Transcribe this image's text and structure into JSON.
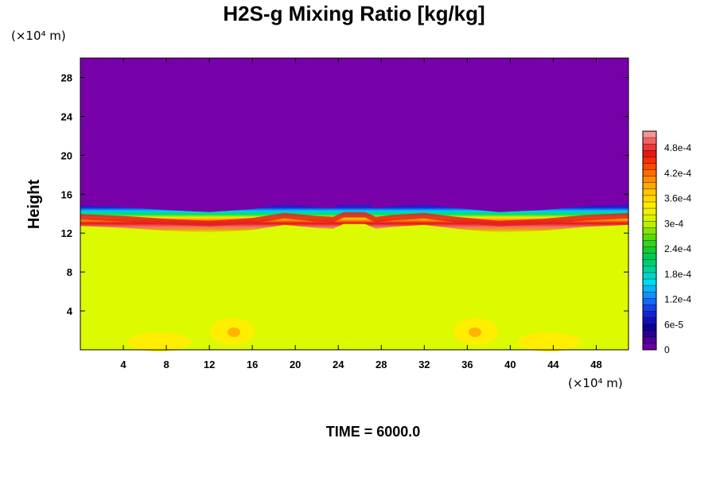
{
  "chart_data": {
    "type": "heatmap",
    "title": "H2S-g Mixing Ratio [kg/kg]",
    "ylabel": "Height",
    "xlabel": "",
    "x_unit": "(×10⁴ m)",
    "y_unit": "(×10⁴ m)",
    "xlim": [
      0,
      51
    ],
    "ylim": [
      0,
      30
    ],
    "x_ticks": [
      4,
      8,
      12,
      16,
      20,
      24,
      28,
      32,
      36,
      40,
      44,
      48
    ],
    "y_ticks": [
      4,
      8,
      12,
      16,
      20,
      24,
      28
    ],
    "colorbar": {
      "range": [
        0,
        0.00052
      ],
      "tick_values": [
        0,
        6e-05,
        0.00012,
        0.00018,
        0.00024,
        0.0003,
        0.00036,
        0.00042,
        0.00048
      ],
      "tick_labels": [
        "0",
        "6e-5",
        "1.2e-4",
        "1.8e-4",
        "2.4e-4",
        "3e-4",
        "3.6e-4",
        "4.2e-4",
        "4.8e-4"
      ]
    },
    "regions": {
      "upper_value": 0,
      "lower_value": 0.00034,
      "interface_height": [
        [
          0,
          14.7
        ],
        [
          4,
          14.5
        ],
        [
          8,
          14.2
        ],
        [
          12,
          14.0
        ],
        [
          16,
          14.3
        ],
        [
          19,
          14.8
        ],
        [
          22,
          14.5
        ],
        [
          23.5,
          14.4
        ],
        [
          24.5,
          14.9
        ],
        [
          26.5,
          14.9
        ],
        [
          27.5,
          14.4
        ],
        [
          29,
          14.6
        ],
        [
          32,
          14.8
        ],
        [
          35,
          14.4
        ],
        [
          39,
          14.0
        ],
        [
          43,
          14.2
        ],
        [
          47,
          14.6
        ],
        [
          51,
          14.8
        ]
      ],
      "peak_layer_value": 0.0005
    },
    "footer": "TIME = 6000.0"
  }
}
